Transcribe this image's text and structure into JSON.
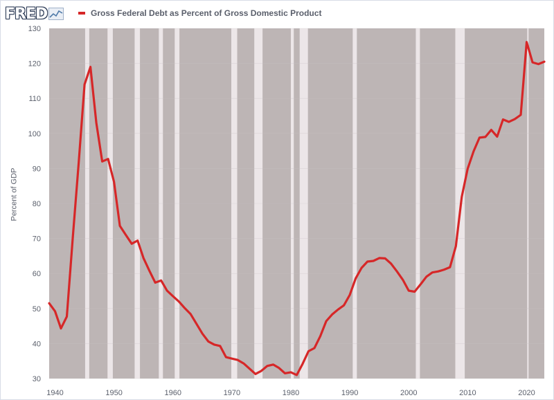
{
  "brand": {
    "logo_text": "FRED",
    "logo_icon": "chart-line-icon"
  },
  "colors": {
    "line": "#d62728",
    "recession": "#bdb5b5",
    "gap": "#ece6e8",
    "axis_text": "#5a5f6b"
  },
  "chart_data": {
    "type": "line",
    "title": "",
    "xlabel": "",
    "ylabel": "Percent of GDP",
    "xlim": [
      1939,
      2023
    ],
    "ylim": [
      30,
      130
    ],
    "yticks": [
      30,
      40,
      50,
      60,
      70,
      80,
      90,
      100,
      110,
      120,
      130
    ],
    "xticks": [
      1940,
      1950,
      1960,
      1970,
      1980,
      1990,
      2000,
      2010,
      2020
    ],
    "legend_position": "top-left",
    "grid": true,
    "series": [
      {
        "name": "Gross Federal Debt as Percent of Gross Domestic Product",
        "color": "#d62728",
        "x": [
          1939,
          1940,
          1941,
          1942,
          1943,
          1944,
          1945,
          1946,
          1947,
          1948,
          1949,
          1950,
          1951,
          1952,
          1953,
          1954,
          1955,
          1956,
          1957,
          1958,
          1959,
          1960,
          1961,
          1962,
          1963,
          1964,
          1965,
          1966,
          1967,
          1968,
          1969,
          1970,
          1971,
          1972,
          1973,
          1974,
          1975,
          1976,
          1977,
          1978,
          1979,
          1980,
          1981,
          1982,
          1983,
          1984,
          1985,
          1986,
          1987,
          1988,
          1989,
          1990,
          1991,
          1992,
          1993,
          1994,
          1995,
          1996,
          1997,
          1998,
          1999,
          2000,
          2001,
          2002,
          2003,
          2004,
          2005,
          2006,
          2007,
          2008,
          2009,
          2010,
          2011,
          2012,
          2013,
          2014,
          2015,
          2016,
          2017,
          2018,
          2019,
          2020,
          2021,
          2022,
          2023
        ],
        "y": [
          51.5,
          49.2,
          44.3,
          47.7,
          70.0,
          91.5,
          114.0,
          119.0,
          103.0,
          92.0,
          92.7,
          86.2,
          73.6,
          71.0,
          68.5,
          69.4,
          64.4,
          60.8,
          57.4,
          58.0,
          55.1,
          53.5,
          52.0,
          50.1,
          48.4,
          45.6,
          42.8,
          40.6,
          39.7,
          39.3,
          36.1,
          35.7,
          35.3,
          34.3,
          32.8,
          31.3,
          32.2,
          33.6,
          34.0,
          33.0,
          31.5,
          31.8,
          31.0,
          34.2,
          37.8,
          38.7,
          42.1,
          46.4,
          48.3,
          49.7,
          50.9,
          53.9,
          58.6,
          61.6,
          63.4,
          63.6,
          64.4,
          64.3,
          62.8,
          60.6,
          58.2,
          55.1,
          54.8,
          56.9,
          59.1,
          60.3,
          60.6,
          61.1,
          61.8,
          67.8,
          81.9,
          89.9,
          94.9,
          98.8,
          99.0,
          101.0,
          99.1,
          104.0,
          103.3,
          104.1,
          105.3,
          126.1,
          120.3,
          119.8,
          120.5
        ]
      }
    ],
    "recessions": [
      [
        1945.1,
        1945.8
      ],
      [
        1948.9,
        1949.8
      ],
      [
        1953.5,
        1954.4
      ],
      [
        1957.6,
        1958.3
      ],
      [
        1960.3,
        1961.1
      ],
      [
        1969.9,
        1970.9
      ],
      [
        1973.8,
        1975.2
      ],
      [
        1980.0,
        1980.5
      ],
      [
        1981.5,
        1982.9
      ],
      [
        1990.5,
        1991.2
      ],
      [
        2001.2,
        2001.9
      ],
      [
        2007.9,
        2009.5
      ],
      [
        2020.1,
        2020.3
      ]
    ]
  }
}
